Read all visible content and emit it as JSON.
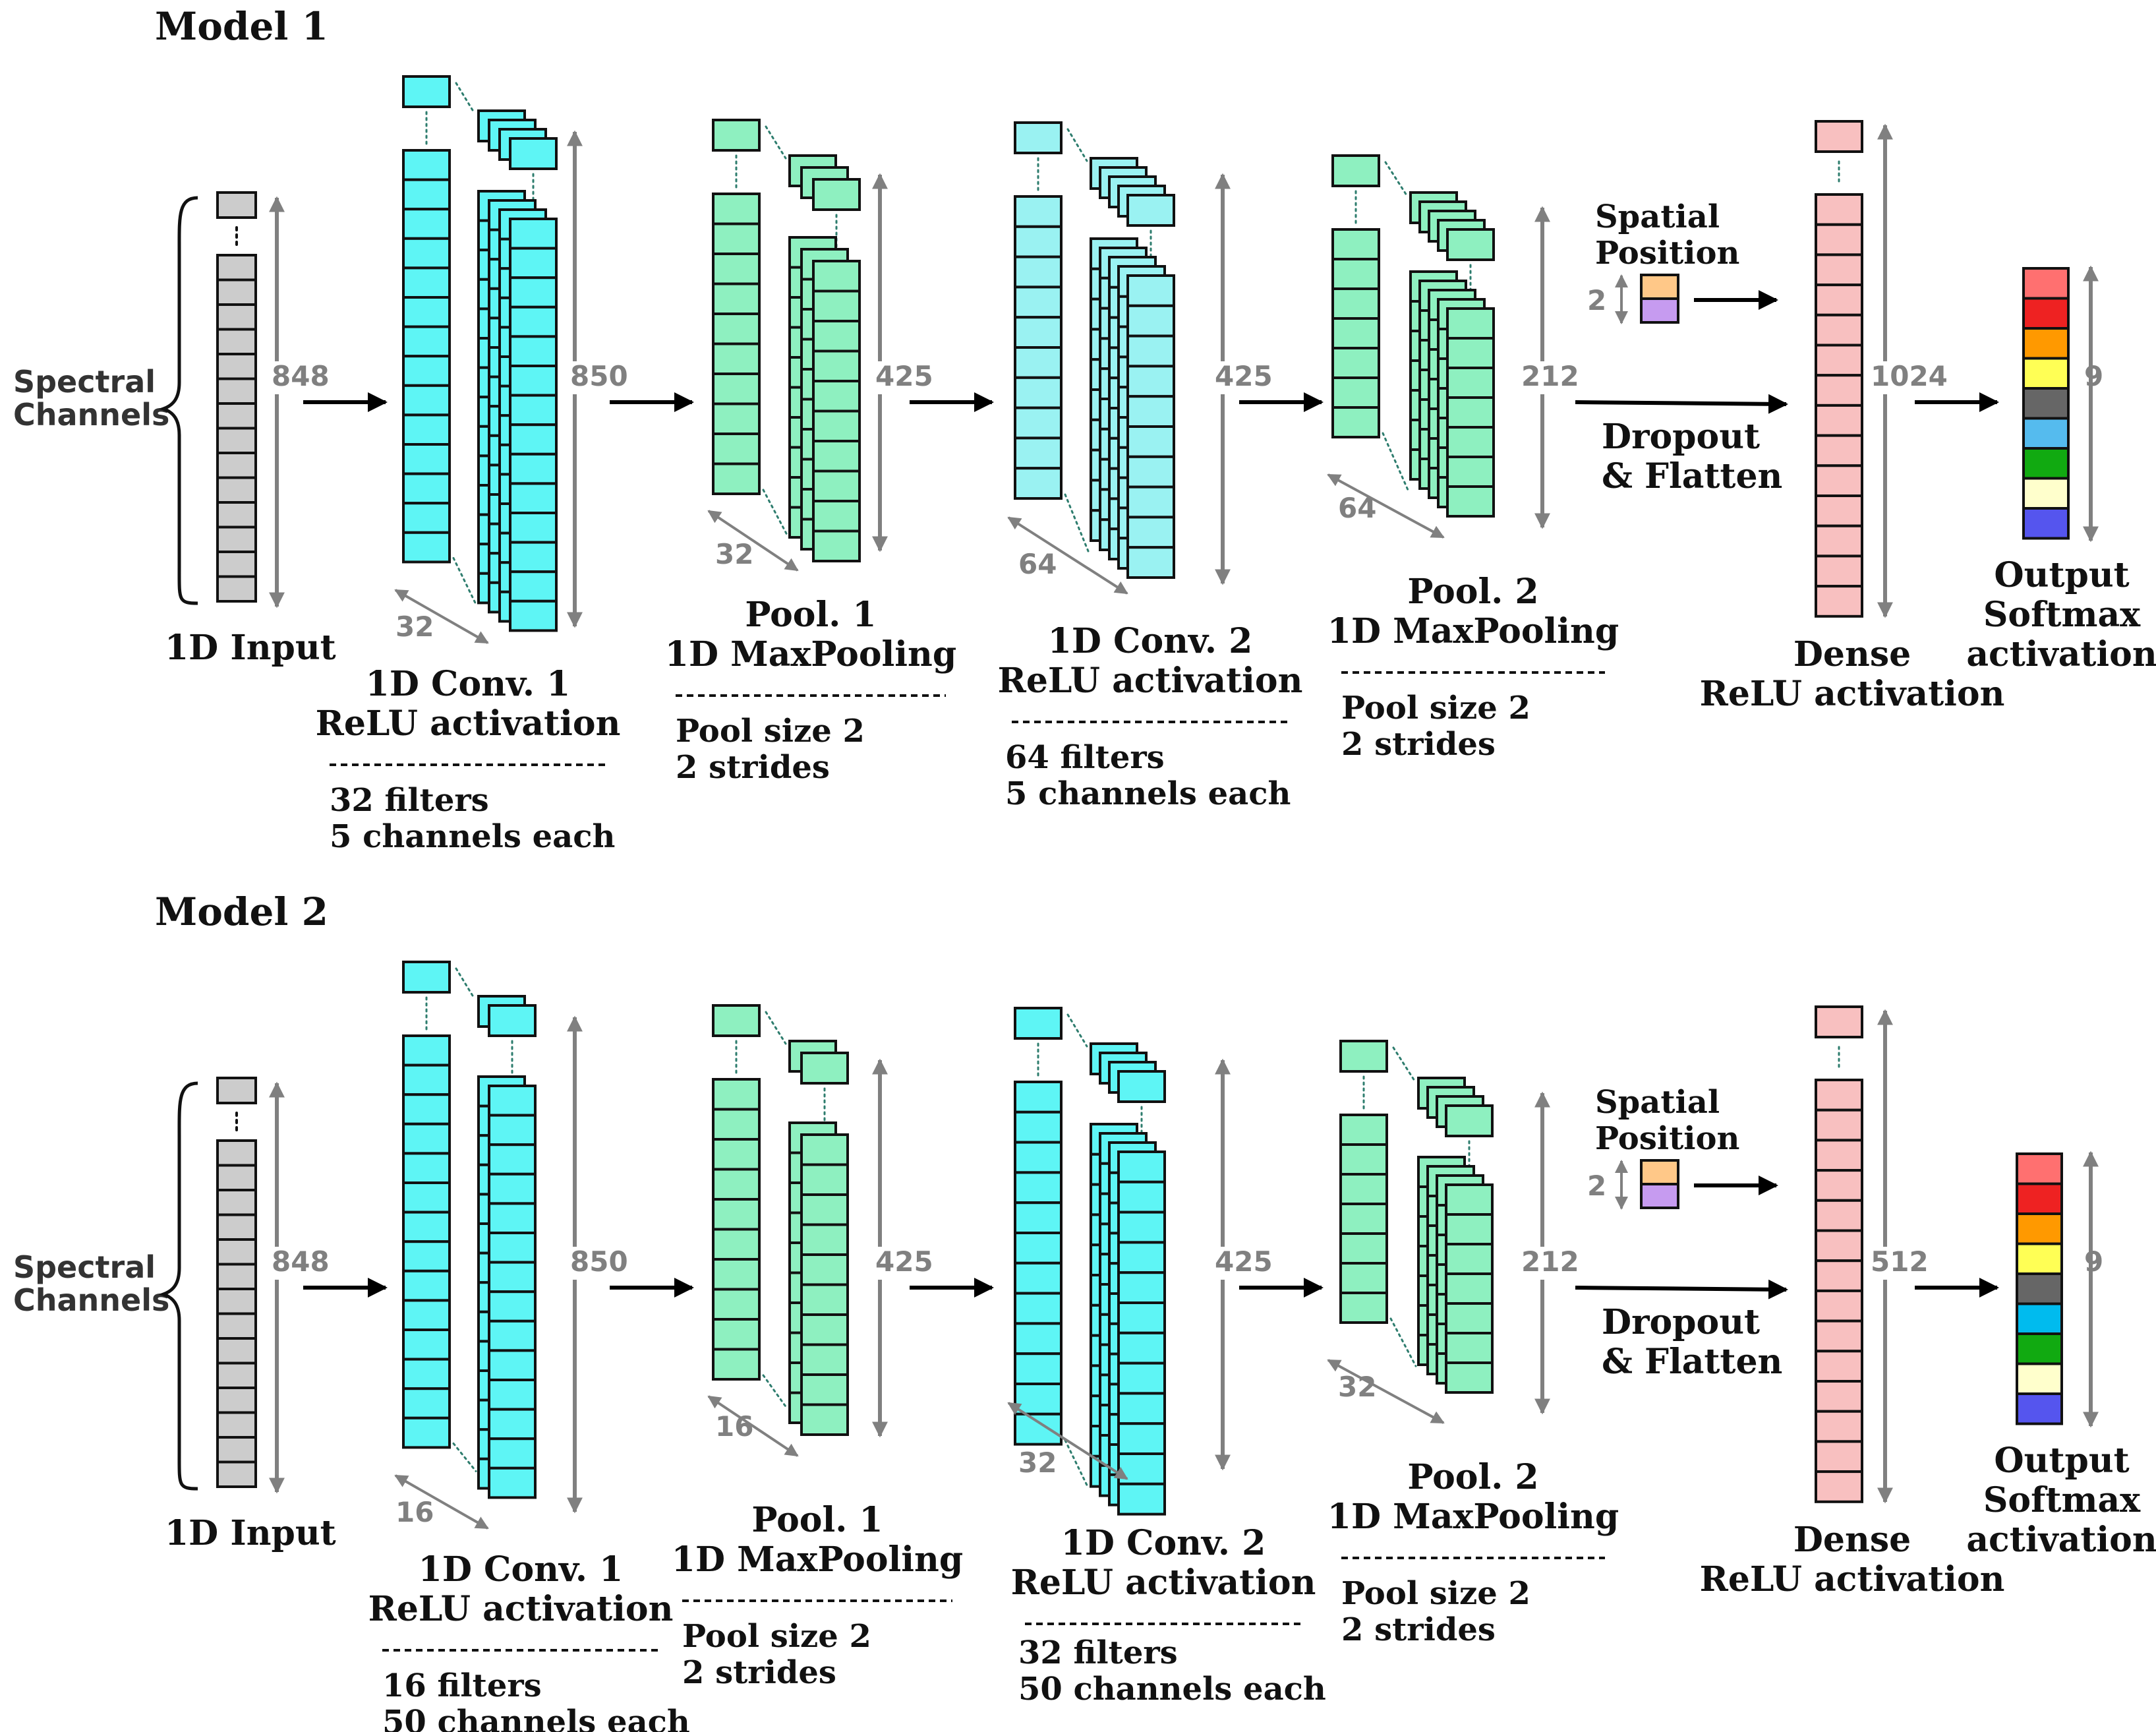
{
  "colors": {
    "input": "#cccccc",
    "conv": "#5ef5f5",
    "conv2": "#9af2f2",
    "pool": "#8ef0c0",
    "pool_light": "#a8f0cc",
    "dense": "#f8c0c0",
    "spatial": [
      "#ffc888",
      "#c69bf0"
    ],
    "output": [
      "#ff7070",
      "#ee2222",
      "#ff9900",
      "#ffff55",
      "#666666",
      "#55bbee",
      "#11aa11",
      "#ffffcc",
      "#5555ee"
    ],
    "output_m2": [
      "#ff7070",
      "#ee2222",
      "#ff9900",
      "#ffff55",
      "#666666",
      "#00bbee",
      "#11aa11",
      "#ffffcc",
      "#5555ee"
    ]
  },
  "models": [
    {
      "title": "Model 1",
      "side_label": [
        "Spectral",
        "Channels"
      ],
      "input": {
        "label": "1D Input",
        "size": "848"
      },
      "conv1": {
        "size": "850",
        "depth": "32",
        "title": [
          "1D Conv. 1",
          "ReLU activation"
        ],
        "details": [
          "32 filters",
          "5 channels each"
        ]
      },
      "pool1": {
        "size": "425",
        "depth": "32",
        "title": [
          "Pool. 1",
          "1D MaxPooling"
        ],
        "details": [
          "Pool size 2",
          "2 strides"
        ]
      },
      "conv2": {
        "size": "425",
        "depth": "64",
        "title": [
          "1D Conv. 2",
          "ReLU activation"
        ],
        "details": [
          "64 filters",
          "5 channels each"
        ]
      },
      "pool2": {
        "size": "212",
        "depth": "64",
        "title": [
          "Pool. 2",
          "1D MaxPooling"
        ],
        "details": [
          "Pool size 2",
          "2 strides"
        ]
      },
      "spatial": {
        "label": [
          "Spatial",
          "Position"
        ],
        "size": "2"
      },
      "flatten": [
        "Dropout",
        "& Flatten"
      ],
      "dense": {
        "size": "1024",
        "title": [
          "Dense",
          "ReLU activation"
        ]
      },
      "output": {
        "size": "9",
        "title": [
          "Output",
          "Softmax",
          "activation"
        ]
      }
    },
    {
      "title": "Model 2",
      "side_label": [
        "Spectral",
        "Channels"
      ],
      "input": {
        "label": "1D Input",
        "size": "848"
      },
      "conv1": {
        "size": "850",
        "depth": "16",
        "title": [
          "1D Conv. 1",
          "ReLU activation"
        ],
        "details": [
          "16 filters",
          "50 channels each"
        ]
      },
      "pool1": {
        "size": "425",
        "depth": "16",
        "title": [
          "Pool. 1",
          "1D MaxPooling"
        ],
        "details": [
          "Pool size 2",
          "2 strides"
        ]
      },
      "conv2": {
        "size": "425",
        "depth": "32",
        "title": [
          "1D Conv. 2",
          "ReLU activation"
        ],
        "details": [
          "32 filters",
          "50 channels each"
        ]
      },
      "pool2": {
        "size": "212",
        "depth": "32",
        "title": [
          "Pool. 2",
          "1D MaxPooling"
        ],
        "details": [
          "Pool size 2",
          "2 strides"
        ]
      },
      "spatial": {
        "label": [
          "Spatial",
          "Position"
        ],
        "size": "2"
      },
      "flatten": [
        "Dropout",
        "& Flatten"
      ],
      "dense": {
        "size": "512",
        "title": [
          "Dense",
          "ReLU activation"
        ]
      },
      "output": {
        "size": "9",
        "title": [
          "Output",
          "Softmax",
          "activation"
        ]
      }
    }
  ]
}
